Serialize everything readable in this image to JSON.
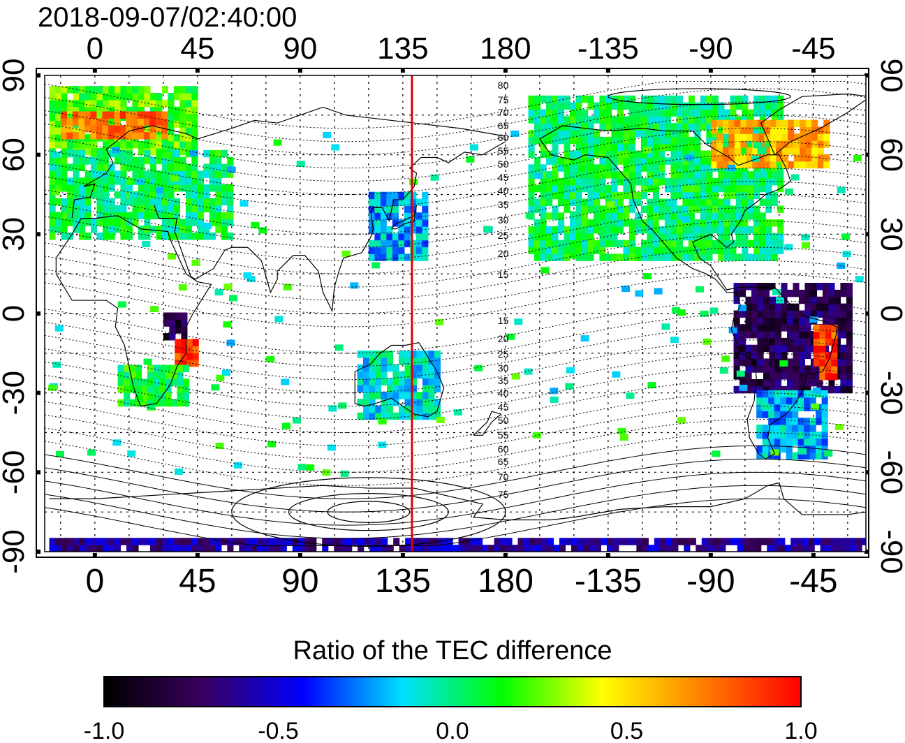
{
  "title": "2018-09-07/02:40:00",
  "map": {
    "lon_tick_labels": [
      "0",
      "45",
      "90",
      "135",
      "180",
      "-135",
      "-90",
      "-45"
    ],
    "lat_tick_labels": [
      "90",
      "60",
      "30",
      "0",
      "-30",
      "-60",
      "-90"
    ],
    "contour_labels_north": [
      "80",
      "75",
      "70",
      "65",
      "60",
      "55",
      "50",
      "45",
      "40",
      "35",
      "30",
      "25",
      "20",
      "15"
    ],
    "contour_labels_south": [
      "15",
      "20",
      "25",
      "30",
      "35",
      "40",
      "45",
      "50",
      "55",
      "60",
      "65",
      "70",
      "75"
    ],
    "marker_longitude": 139,
    "marker_color": "#dd0000",
    "lon_range": [
      -22,
      338
    ],
    "lat_range": [
      -90,
      90
    ]
  },
  "colorbar": {
    "label": "Ratio of the TEC difference",
    "tick_labels": [
      "-1.0",
      "-0.5",
      "0.0",
      "0.5",
      "1.0"
    ],
    "range": [
      -1.0,
      1.0
    ],
    "colors": [
      "#000000",
      "#3a0060",
      "#0000ff",
      "#00e0ff",
      "#00ff00",
      "#ffff00",
      "#ff8000",
      "#ff0000"
    ]
  },
  "chart_data": {
    "type": "heatmap",
    "title": "2018-09-07/02:40:00",
    "xlabel": "",
    "ylabel": "",
    "colorbar_label": "Ratio of the TEC difference",
    "xlim": [
      -22,
      338
    ],
    "ylim": [
      -90,
      90
    ],
    "vrange": [
      -1.0,
      1.0
    ],
    "regions": [
      {
        "lon": [
          -20,
          45
        ],
        "lat": [
          60,
          85
        ],
        "value": 0.2
      },
      {
        "lon": [
          -15,
          30
        ],
        "lat": [
          66,
          75
        ],
        "value": 0.75
      },
      {
        "lon": [
          -20,
          60
        ],
        "lat": [
          28,
          60
        ],
        "value": 0.05
      },
      {
        "lon": [
          30,
          40
        ],
        "lat": [
          -10,
          0
        ],
        "value": -0.8
      },
      {
        "lon": [
          35,
          45
        ],
        "lat": [
          -20,
          -10
        ],
        "value": 0.9
      },
      {
        "lon": [
          10,
          40
        ],
        "lat": [
          -35,
          -20
        ],
        "value": 0.1
      },
      {
        "lon": [
          120,
          145
        ],
        "lat": [
          20,
          45
        ],
        "value": -0.2
      },
      {
        "lon": [
          115,
          150
        ],
        "lat": [
          -40,
          -15
        ],
        "value": -0.1
      },
      {
        "lon": [
          190,
          300
        ],
        "lat": [
          20,
          80
        ],
        "value": 0.05
      },
      {
        "lon": [
          270,
          320
        ],
        "lat": [
          55,
          72
        ],
        "value": 0.6
      },
      {
        "lon": [
          280,
          330
        ],
        "lat": [
          -30,
          10
        ],
        "value": -0.75
      },
      {
        "lon": [
          315,
          325
        ],
        "lat": [
          -25,
          -5
        ],
        "value": 0.85
      },
      {
        "lon": [
          290,
          320
        ],
        "lat": [
          -55,
          -30
        ],
        "value": -0.2
      },
      {
        "lon": [
          -20,
          338
        ],
        "lat": [
          -90,
          -85
        ],
        "value": -0.6
      }
    ]
  }
}
